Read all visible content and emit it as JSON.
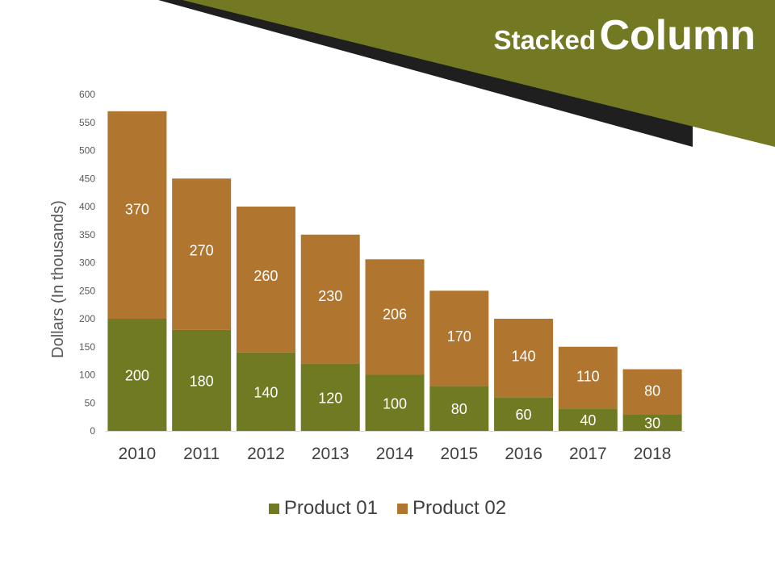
{
  "title": {
    "part1": "Stacked",
    "part2": "Column"
  },
  "colors": {
    "banner": "#737822",
    "banner_shadow": "#1f1f1f"
  },
  "chart_data": {
    "type": "bar",
    "stacked": true,
    "categories": [
      "2010",
      "2011",
      "2012",
      "2013",
      "2014",
      "2015",
      "2016",
      "2017",
      "2018"
    ],
    "series": [
      {
        "name": "Product 01",
        "color": "#6f7a22",
        "values": [
          200,
          180,
          140,
          120,
          100,
          80,
          60,
          40,
          30
        ]
      },
      {
        "name": "Product 02",
        "color": "#b07630",
        "values": [
          370,
          270,
          260,
          230,
          206,
          170,
          140,
          110,
          80
        ]
      }
    ],
    "ylabel": "Dollars (In thousands)",
    "xlabel": "",
    "ylim": [
      0,
      600
    ],
    "yticks": [
      0,
      50,
      100,
      150,
      200,
      250,
      300,
      350,
      400,
      450,
      500,
      550,
      600
    ],
    "grid": false,
    "legend": "bottom"
  }
}
